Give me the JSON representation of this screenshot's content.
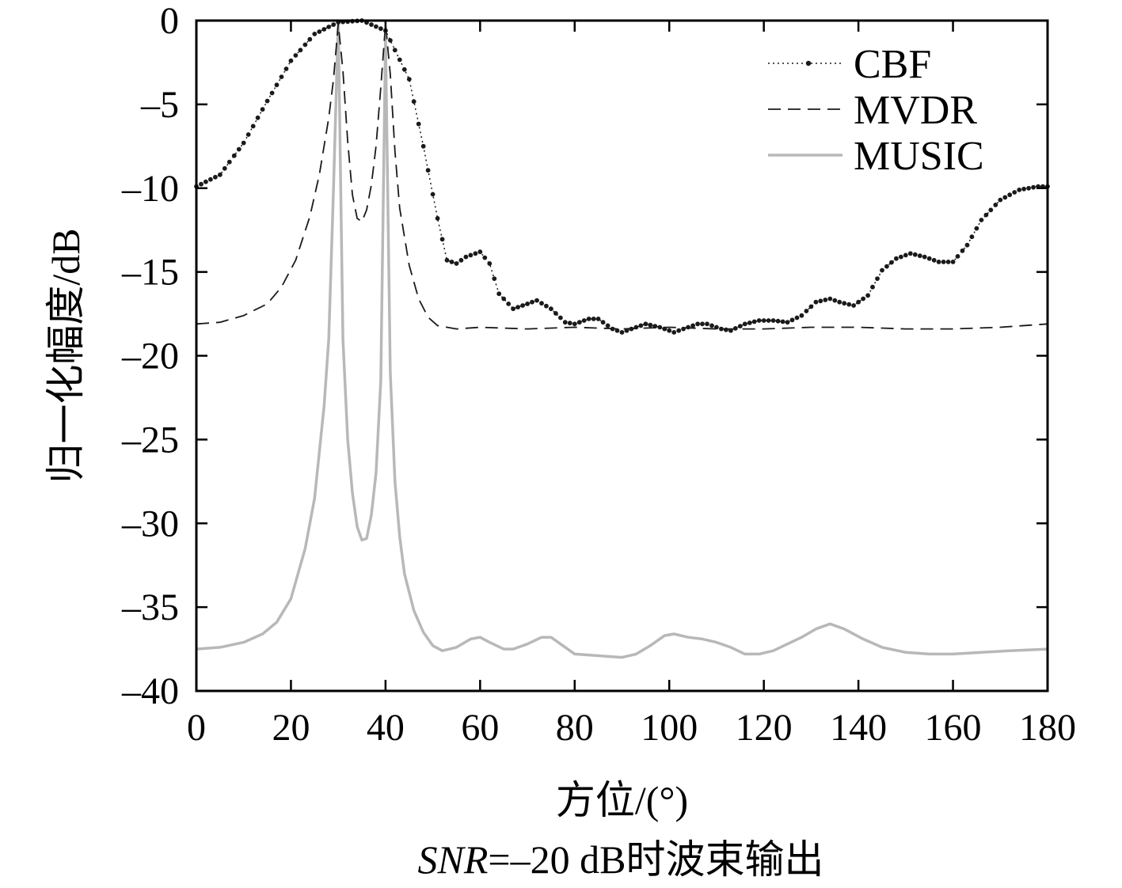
{
  "chart_data": {
    "type": "line",
    "xlabel": "方位/(°)",
    "ylabel": "归一化幅度/dB",
    "caption_italic": "SNR",
    "caption_rest": "=–20 dB时波束输出",
    "xlim": [
      0,
      180
    ],
    "ylim": [
      -40,
      0
    ],
    "x_ticks": [
      0,
      20,
      40,
      60,
      80,
      100,
      120,
      140,
      160,
      180
    ],
    "y_ticks": [
      0,
      -5,
      -10,
      -15,
      -20,
      -25,
      -30,
      -35,
      -40
    ],
    "y_tick_labels": [
      "0",
      "–5",
      "–10",
      "–15",
      "–20",
      "–25",
      "–30",
      "–35",
      "–40"
    ],
    "grid": false,
    "legend_position": "top-right",
    "series": [
      {
        "name": "CBF",
        "style": "dotted-markers",
        "color": "#1a1a1a",
        "points": [
          [
            0,
            -9.9
          ],
          [
            5,
            -9.2
          ],
          [
            10,
            -7.3
          ],
          [
            15,
            -4.8
          ],
          [
            20,
            -2.4
          ],
          [
            25,
            -0.8
          ],
          [
            30,
            -0.1
          ],
          [
            35,
            0
          ],
          [
            40,
            -0.6
          ],
          [
            45,
            -3.5
          ],
          [
            48,
            -7.5
          ],
          [
            51,
            -11.8
          ],
          [
            53,
            -14.3
          ],
          [
            55,
            -14.5
          ],
          [
            57,
            -14.1
          ],
          [
            60,
            -13.8
          ],
          [
            62,
            -14.5
          ],
          [
            64,
            -16.3
          ],
          [
            67,
            -17.2
          ],
          [
            70,
            -16.9
          ],
          [
            72,
            -16.7
          ],
          [
            75,
            -17.2
          ],
          [
            78,
            -18.0
          ],
          [
            80,
            -18.1
          ],
          [
            83,
            -17.8
          ],
          [
            85,
            -17.8
          ],
          [
            88,
            -18.4
          ],
          [
            90,
            -18.6
          ],
          [
            93,
            -18.3
          ],
          [
            95,
            -18.1
          ],
          [
            98,
            -18.3
          ],
          [
            101,
            -18.6
          ],
          [
            103,
            -18.4
          ],
          [
            106,
            -18.1
          ],
          [
            108,
            -18.1
          ],
          [
            111,
            -18.4
          ],
          [
            113,
            -18.5
          ],
          [
            116,
            -18.1
          ],
          [
            119,
            -17.9
          ],
          [
            122,
            -17.9
          ],
          [
            125,
            -18.0
          ],
          [
            128,
            -17.6
          ],
          [
            131,
            -16.8
          ],
          [
            134,
            -16.6
          ],
          [
            136,
            -16.8
          ],
          [
            139,
            -17.0
          ],
          [
            142,
            -16.4
          ],
          [
            145,
            -14.9
          ],
          [
            148,
            -14.2
          ],
          [
            151,
            -13.9
          ],
          [
            154,
            -14.1
          ],
          [
            157,
            -14.4
          ],
          [
            160,
            -14.4
          ],
          [
            163,
            -13.4
          ],
          [
            166,
            -11.9
          ],
          [
            170,
            -10.7
          ],
          [
            174,
            -10.1
          ],
          [
            178,
            -9.9
          ],
          [
            180,
            -9.9
          ]
        ]
      },
      {
        "name": "MVDR",
        "style": "dashed",
        "color": "#1a1a1a",
        "points": [
          [
            0,
            -18.1
          ],
          [
            5,
            -18.0
          ],
          [
            10,
            -17.6
          ],
          [
            15,
            -16.9
          ],
          [
            18,
            -15.9
          ],
          [
            21,
            -14.3
          ],
          [
            24,
            -11.7
          ],
          [
            26,
            -9.2
          ],
          [
            28,
            -5.8
          ],
          [
            29,
            -3.5
          ],
          [
            30,
            -0.2
          ],
          [
            31,
            -3.0
          ],
          [
            32,
            -7.2
          ],
          [
            33,
            -10.4
          ],
          [
            34,
            -11.8
          ],
          [
            35,
            -12.0
          ],
          [
            36,
            -11.3
          ],
          [
            37,
            -9.8
          ],
          [
            38,
            -7.5
          ],
          [
            39,
            -4.0
          ],
          [
            40,
            -0.2
          ],
          [
            41,
            -3.2
          ],
          [
            42,
            -7.8
          ],
          [
            43,
            -11.2
          ],
          [
            45,
            -14.6
          ],
          [
            47,
            -16.6
          ],
          [
            49,
            -17.7
          ],
          [
            51,
            -18.2
          ],
          [
            55,
            -18.4
          ],
          [
            60,
            -18.3
          ],
          [
            70,
            -18.4
          ],
          [
            80,
            -18.3
          ],
          [
            90,
            -18.4
          ],
          [
            100,
            -18.3
          ],
          [
            110,
            -18.4
          ],
          [
            120,
            -18.4
          ],
          [
            130,
            -18.3
          ],
          [
            140,
            -18.3
          ],
          [
            150,
            -18.4
          ],
          [
            160,
            -18.4
          ],
          [
            170,
            -18.3
          ],
          [
            180,
            -18.1
          ]
        ]
      },
      {
        "name": "MUSIC",
        "style": "solid",
        "color": "#b8b8b8",
        "points": [
          [
            0,
            -37.5
          ],
          [
            5,
            -37.4
          ],
          [
            10,
            -37.1
          ],
          [
            14,
            -36.6
          ],
          [
            17,
            -35.9
          ],
          [
            20,
            -34.5
          ],
          [
            23,
            -31.5
          ],
          [
            25,
            -28.5
          ],
          [
            27,
            -23.0
          ],
          [
            28,
            -19.0
          ],
          [
            29,
            -10.0
          ],
          [
            30,
            0.0
          ],
          [
            31,
            -19.0
          ],
          [
            32,
            -25.0
          ],
          [
            33,
            -28.2
          ],
          [
            34,
            -30.2
          ],
          [
            35,
            -31.0
          ],
          [
            36,
            -30.9
          ],
          [
            37,
            -29.5
          ],
          [
            38,
            -27.0
          ],
          [
            39,
            -21.5
          ],
          [
            40,
            -1.0
          ],
          [
            41,
            -21.0
          ],
          [
            42,
            -27.5
          ],
          [
            43,
            -30.8
          ],
          [
            44,
            -33.0
          ],
          [
            46,
            -35.2
          ],
          [
            48,
            -36.5
          ],
          [
            50,
            -37.3
          ],
          [
            52,
            -37.6
          ],
          [
            55,
            -37.4
          ],
          [
            58,
            -36.9
          ],
          [
            60,
            -36.8
          ],
          [
            62,
            -37.1
          ],
          [
            65,
            -37.5
          ],
          [
            67,
            -37.5
          ],
          [
            70,
            -37.2
          ],
          [
            73,
            -36.8
          ],
          [
            75,
            -36.8
          ],
          [
            77,
            -37.2
          ],
          [
            80,
            -37.8
          ],
          [
            85,
            -37.9
          ],
          [
            90,
            -38.0
          ],
          [
            93,
            -37.8
          ],
          [
            96,
            -37.3
          ],
          [
            99,
            -36.7
          ],
          [
            101,
            -36.6
          ],
          [
            104,
            -36.8
          ],
          [
            107,
            -36.9
          ],
          [
            110,
            -37.1
          ],
          [
            113,
            -37.4
          ],
          [
            116,
            -37.8
          ],
          [
            119,
            -37.8
          ],
          [
            122,
            -37.6
          ],
          [
            125,
            -37.2
          ],
          [
            128,
            -36.8
          ],
          [
            131,
            -36.3
          ],
          [
            134,
            -36.0
          ],
          [
            137,
            -36.3
          ],
          [
            141,
            -36.9
          ],
          [
            145,
            -37.4
          ],
          [
            150,
            -37.7
          ],
          [
            155,
            -37.8
          ],
          [
            160,
            -37.8
          ],
          [
            166,
            -37.7
          ],
          [
            172,
            -37.6
          ],
          [
            180,
            -37.5
          ]
        ]
      }
    ]
  }
}
